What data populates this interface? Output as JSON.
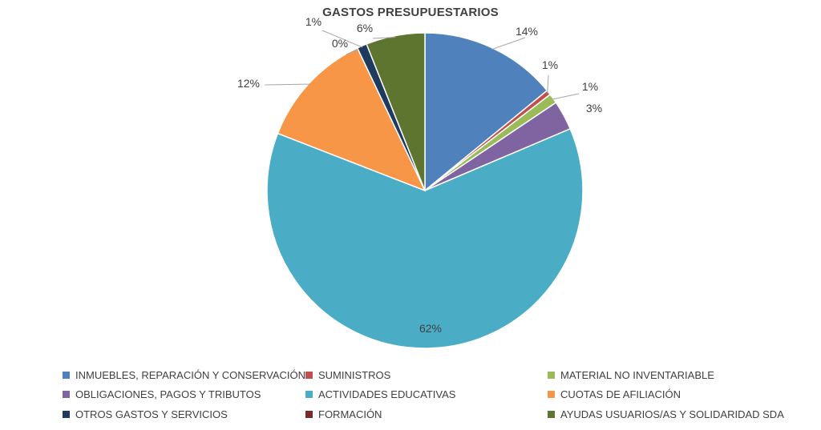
{
  "chart_data": {
    "type": "pie",
    "title": "GASTOS PRESUPUESTARIOS",
    "legend_position": "bottom",
    "slices": [
      {
        "label": "INMUEBLES, REPARACIÓN Y CONSERVACIÓN",
        "value": 14,
        "value_label": "14%",
        "color": "#4F81BD"
      },
      {
        "label": "SUMINISTROS",
        "value": 0.5,
        "value_label": "1%",
        "color": "#C0504D"
      },
      {
        "label": "MATERIAL NO INVENTARIABLE",
        "value": 1,
        "value_label": "1%",
        "color": "#9BBB59"
      },
      {
        "label": "OBLIGACIONES, PAGOS Y TRIBUTOS",
        "value": 3,
        "value_label": "3%",
        "color": "#8064A2"
      },
      {
        "label": "ACTIVIDADES EDUCATIVAS",
        "value": 62,
        "value_label": "62%",
        "color": "#4BACC6"
      },
      {
        "label": "CUOTAS DE AFILIACIÓN",
        "value": 12,
        "value_label": "12%",
        "color": "#F79646"
      },
      {
        "label": "FORMACIÓN",
        "value": 0,
        "value_label": "0%",
        "color": "#772C2A"
      },
      {
        "label": "OTROS GASTOS Y SERVICIOS",
        "value": 1,
        "value_label": "1%",
        "color": "#1F3A5F"
      },
      {
        "label": "AYUDAS USUARIOS/AS Y SOLIDARIDAD SDA",
        "value": 6,
        "value_label": "6%",
        "color": "#5E7530"
      }
    ],
    "legend_order": [
      "INMUEBLES, REPARACIÓN Y CONSERVACIÓN",
      "SUMINISTROS",
      "MATERIAL NO INVENTARIABLE",
      "OBLIGACIONES, PAGOS Y TRIBUTOS",
      "ACTIVIDADES EDUCATIVAS",
      "CUOTAS DE AFILIACIÓN",
      "OTROS GASTOS Y SERVICIOS",
      "FORMACIÓN",
      "AYUDAS USUARIOS/AS Y SOLIDARIDAD SDA"
    ]
  }
}
